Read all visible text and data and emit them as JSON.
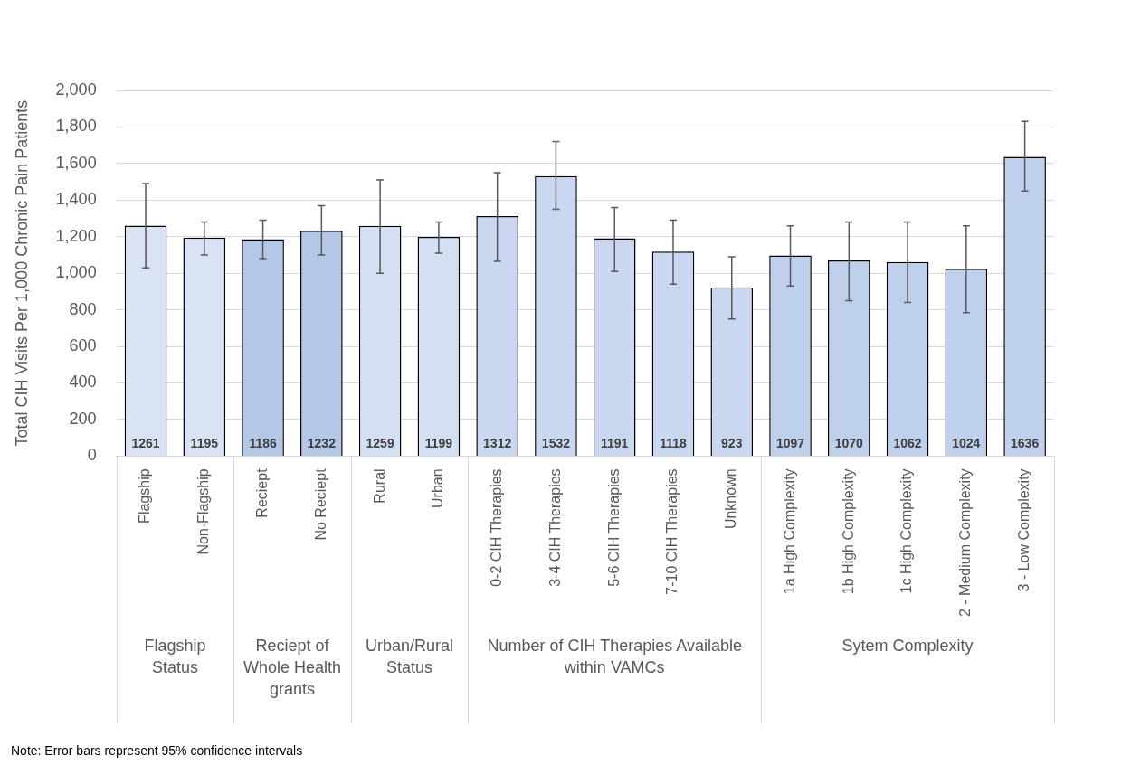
{
  "chart_data": {
    "type": "bar",
    "ylabel": "Total CIH Visits Per 1,000 Chronic Pain Patients",
    "categories": [
      "Flagship",
      "Non-Flagship",
      "Reciept",
      "No Reciept",
      "Rural",
      "Urban",
      "0-2 CIH Therapies",
      "3-4 CIH Therapies",
      "5-6 CIH Therapies",
      "7-10 CIH Therapies",
      "Unknown",
      "1a High Complexity",
      "1b High Complexity",
      "1c High Complexity",
      "2 - Medium Complexity",
      "3 - Low Complexity"
    ],
    "values": [
      1261,
      1195,
      1186,
      1232,
      1259,
      1199,
      1312,
      1532,
      1191,
      1118,
      923,
      1097,
      1070,
      1062,
      1024,
      1636
    ],
    "errors": [
      [
        1030,
        1490
      ],
      [
        1100,
        1280
      ],
      [
        1080,
        1290
      ],
      [
        1100,
        1370
      ],
      [
        1000,
        1510
      ],
      [
        1110,
        1280
      ],
      [
        1065,
        1550
      ],
      [
        1350,
        1720
      ],
      [
        1010,
        1360
      ],
      [
        940,
        1290
      ],
      [
        750,
        1090
      ],
      [
        930,
        1260
      ],
      [
        850,
        1280
      ],
      [
        840,
        1280
      ],
      [
        785,
        1260
      ],
      [
        1450,
        1830
      ]
    ],
    "colors": [
      "#dae3f3",
      "#dae3f3",
      "#b4c7e7",
      "#b4c7e7",
      "#d3dff2",
      "#d3dff2",
      "#c9d8f0",
      "#c9d8f0",
      "#c9d8f0",
      "#c9d8f0",
      "#c9d8f0",
      "#bfd0ed",
      "#bfd0ed",
      "#bfd0ed",
      "#bfd0ed",
      "#bfd0ed"
    ],
    "data_labels": true,
    "ylim": [
      0,
      2000
    ],
    "yticks": [
      {
        "value": 0,
        "label": "0"
      },
      {
        "value": 200,
        "label": "200"
      },
      {
        "value": 400,
        "label": "400"
      },
      {
        "value": 600,
        "label": "600"
      },
      {
        "value": 800,
        "label": "800"
      },
      {
        "value": 1000,
        "label": "1,000"
      },
      {
        "value": 1200,
        "label": "1,200"
      },
      {
        "value": 1400,
        "label": "1,400"
      },
      {
        "value": 1600,
        "label": "1,600"
      },
      {
        "value": 1800,
        "label": "1,800"
      },
      {
        "value": 2000,
        "label": "2,000"
      }
    ],
    "grid": "y",
    "legend": false,
    "annotations": [
      "Flagship Status",
      "Reciept of Whole Health grants",
      "Urban/Rural Status",
      "Number of CIH Therapies Available within VAMCs",
      "Sytem Complexity",
      "Note: Error bars represent 95% confidence intervals"
    ]
  }
}
